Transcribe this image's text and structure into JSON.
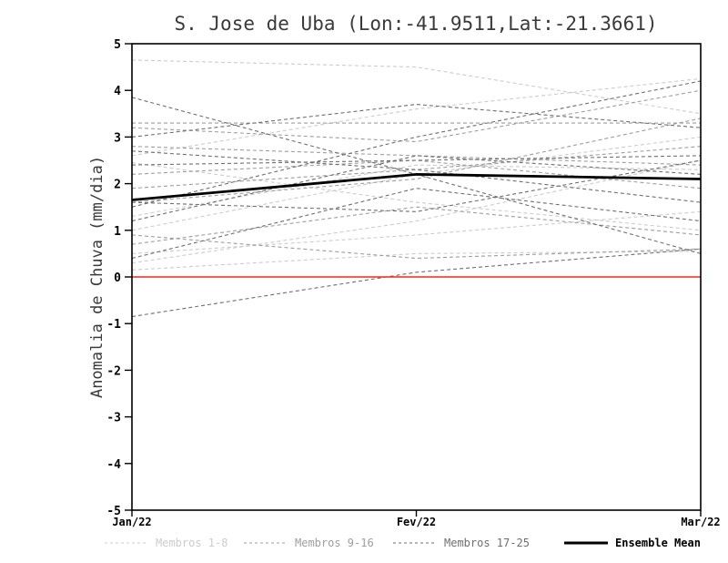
{
  "chart_data": {
    "type": "line",
    "title": "S. Jose de Uba (Lon:-41.9511,Lat:-21.3661)",
    "ylabel": "Anomalia de Chuva (mm/dia)",
    "xlabel": "",
    "x_ticklabels": [
      "Jan/22",
      "Fev/22",
      "Mar/22"
    ],
    "ylim": [
      -5,
      5
    ],
    "ytick_step": 1,
    "grid": false,
    "legend_position": "bottom",
    "zero_line": {
      "value": 0,
      "color": "#ff2020"
    },
    "groups": [
      {
        "name": "Membros 1-8",
        "color": "#cccccc",
        "style": "dashed",
        "members": [
          [
            4.65,
            4.5,
            3.5
          ],
          [
            2.6,
            3.6,
            4.25
          ],
          [
            0.3,
            1.2,
            2.5
          ],
          [
            1.3,
            2.4,
            2.3
          ],
          [
            0.15,
            0.5,
            0.55
          ],
          [
            2.45,
            1.6,
            1.0
          ],
          [
            1.0,
            2.2,
            3.0
          ],
          [
            0.5,
            0.9,
            1.4
          ]
        ]
      },
      {
        "name": "Membros 9-16",
        "color": "#9e9e9e",
        "style": "dashed",
        "members": [
          [
            3.3,
            3.3,
            3.3
          ],
          [
            1.9,
            2.3,
            2.8
          ],
          [
            0.7,
            1.5,
            0.9
          ],
          [
            2.8,
            2.6,
            2.4
          ],
          [
            1.6,
            2.1,
            3.4
          ],
          [
            0.9,
            0.4,
            0.6
          ],
          [
            3.2,
            2.9,
            4.0
          ],
          [
            2.2,
            2.5,
            1.9
          ]
        ]
      },
      {
        "name": "Membros 17-25",
        "color": "#6f6f6f",
        "style": "dashed",
        "members": [
          [
            3.85,
            2.2,
            0.5
          ],
          [
            -0.85,
            0.1,
            0.6
          ],
          [
            2.4,
            2.5,
            2.6
          ],
          [
            1.5,
            3.0,
            4.2
          ],
          [
            3.0,
            3.7,
            3.2
          ],
          [
            0.4,
            1.9,
            1.2
          ],
          [
            1.2,
            2.6,
            2.2
          ],
          [
            1.6,
            1.4,
            2.5
          ],
          [
            2.7,
            2.3,
            1.6
          ]
        ]
      }
    ],
    "mean": {
      "name": "Ensemble Mean",
      "color": "#000000",
      "style": "solid",
      "values": [
        1.65,
        2.2,
        2.1
      ]
    },
    "legend": [
      "Membros 1-8",
      "Membros 9-16",
      "Membros 17-25",
      "Ensemble Mean"
    ]
  }
}
